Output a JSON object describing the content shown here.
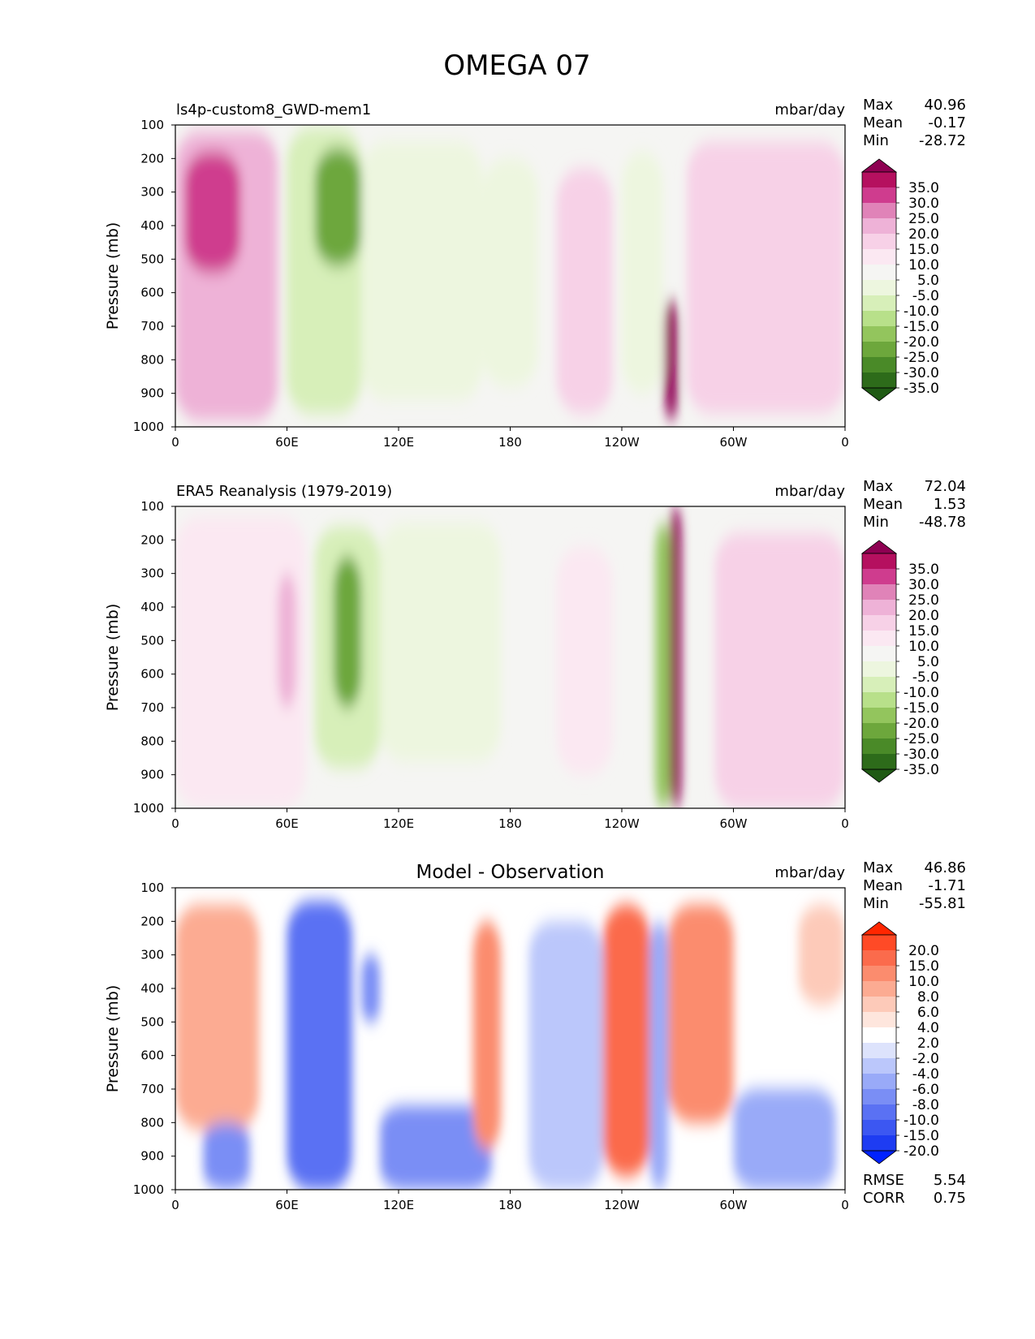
{
  "figure": {
    "title": "OMEGA 07"
  },
  "chart_data": [
    {
      "type": "heatmap",
      "title_left": "ls4p-custom8_GWD-mem1",
      "title_center": "",
      "units": "mbar/day",
      "ylabel": "Pressure (mb)",
      "yticks": [
        "100",
        "200",
        "300",
        "400",
        "500",
        "600",
        "700",
        "800",
        "900",
        "1000"
      ],
      "ylim": [
        1000,
        100
      ],
      "xticks": [
        "0",
        "60E",
        "120E",
        "180",
        "120W",
        "60W",
        "0"
      ],
      "xlim": [
        0,
        360
      ],
      "stats": [
        {
          "label": "Max",
          "value": "40.96"
        },
        {
          "label": "Mean",
          "value": "-0.17"
        },
        {
          "label": "Min",
          "value": "-28.72"
        }
      ],
      "colorbar": {
        "labels": [
          "35.0",
          "30.0",
          "25.0",
          "20.0",
          "15.0",
          "10.0",
          "5.0",
          "-5.0",
          "-10.0",
          "-15.0",
          "-20.0",
          "-25.0",
          "-30.0",
          "-35.0"
        ],
        "colors": [
          "#8e0152",
          "#b5105f",
          "#cf3c8e",
          "#e083b8",
          "#eeb2d7",
          "#f7d1e7",
          "#fbe8f2",
          "#f5f5f3",
          "#edf6df",
          "#d7efb9",
          "#b8e08a",
          "#93c55d",
          "#6da73c",
          "#4a8a28",
          "#2d6b1a",
          "#1f5a14"
        ]
      },
      "features": [
        {
          "lon_range": [
            0,
            55
          ],
          "p_range": [
            120,
            980
          ],
          "value": 15
        },
        {
          "lon_range": [
            5,
            35
          ],
          "p_range": [
            180,
            540
          ],
          "value": 25
        },
        {
          "lon_range": [
            60,
            100
          ],
          "p_range": [
            110,
            960
          ],
          "value": -15
        },
        {
          "lon_range": [
            75,
            100
          ],
          "p_range": [
            170,
            520
          ],
          "value": -28
        },
        {
          "lon_range": [
            100,
            165
          ],
          "p_range": [
            150,
            920
          ],
          "value": -10
        },
        {
          "lon_range": [
            165,
            195
          ],
          "p_range": [
            200,
            880
          ],
          "value": -6
        },
        {
          "lon_range": [
            205,
            235
          ],
          "p_range": [
            230,
            960
          ],
          "value": 13
        },
        {
          "lon_range": [
            240,
            262
          ],
          "p_range": [
            180,
            900
          ],
          "value": -9
        },
        {
          "lon_range": [
            263,
            270
          ],
          "p_range": [
            620,
            980
          ],
          "value": 38
        },
        {
          "lon_range": [
            275,
            360
          ],
          "p_range": [
            150,
            960
          ],
          "value": 12
        }
      ]
    },
    {
      "type": "heatmap",
      "title_left": "ERA5 Reanalysis (1979-2019)",
      "title_center": "",
      "units": "mbar/day",
      "ylabel": "Pressure (mb)",
      "yticks": [
        "100",
        "200",
        "300",
        "400",
        "500",
        "600",
        "700",
        "800",
        "900",
        "1000"
      ],
      "ylim": [
        1000,
        100
      ],
      "xticks": [
        "0",
        "60E",
        "120E",
        "180",
        "120W",
        "60W",
        "0"
      ],
      "xlim": [
        0,
        360
      ],
      "stats": [
        {
          "label": "Max",
          "value": "72.04"
        },
        {
          "label": "Mean",
          "value": "1.53"
        },
        {
          "label": "Min",
          "value": "-48.78"
        }
      ],
      "colorbar": {
        "labels": [
          "35.0",
          "30.0",
          "25.0",
          "20.0",
          "15.0",
          "10.0",
          "5.0",
          "-5.0",
          "-10.0",
          "-15.0",
          "-20.0",
          "-25.0",
          "-30.0",
          "-35.0"
        ],
        "colors": [
          "#8e0152",
          "#b5105f",
          "#cf3c8e",
          "#e083b8",
          "#eeb2d7",
          "#f7d1e7",
          "#fbe8f2",
          "#f5f5f3",
          "#edf6df",
          "#d7efb9",
          "#b8e08a",
          "#93c55d",
          "#6da73c",
          "#4a8a28",
          "#2d6b1a",
          "#1f5a14"
        ]
      },
      "features": [
        {
          "lon_range": [
            0,
            70
          ],
          "p_range": [
            130,
            1000
          ],
          "value": 9
        },
        {
          "lon_range": [
            55,
            65
          ],
          "p_range": [
            300,
            700
          ],
          "value": 18
        },
        {
          "lon_range": [
            75,
            110
          ],
          "p_range": [
            160,
            880
          ],
          "value": -15
        },
        {
          "lon_range": [
            85,
            100
          ],
          "p_range": [
            250,
            700
          ],
          "value": -28
        },
        {
          "lon_range": [
            110,
            175
          ],
          "p_range": [
            150,
            860
          ],
          "value": -10
        },
        {
          "lon_range": [
            205,
            235
          ],
          "p_range": [
            220,
            900
          ],
          "value": 8
        },
        {
          "lon_range": [
            258,
            266
          ],
          "p_range": [
            150,
            1000
          ],
          "value": -25
        },
        {
          "lon_range": [
            266,
            272
          ],
          "p_range": [
            100,
            1000
          ],
          "value": 45
        },
        {
          "lon_range": [
            290,
            360
          ],
          "p_range": [
            180,
            1000
          ],
          "value": 12
        }
      ]
    },
    {
      "type": "heatmap",
      "title_left": "",
      "title_center": "Model - Observation",
      "units": "mbar/day",
      "ylabel": "Pressure (mb)",
      "yticks": [
        "100",
        "200",
        "300",
        "400",
        "500",
        "600",
        "700",
        "800",
        "900",
        "1000"
      ],
      "ylim": [
        1000,
        100
      ],
      "xticks": [
        "0",
        "60E",
        "120E",
        "180",
        "120W",
        "60W",
        "0"
      ],
      "xlim": [
        0,
        360
      ],
      "stats": [
        {
          "label": "Max",
          "value": "46.86"
        },
        {
          "label": "Mean",
          "value": "-1.71"
        },
        {
          "label": "Min",
          "value": "-55.81"
        }
      ],
      "extra_stats": [
        {
          "label": "RMSE",
          "value": "5.54"
        },
        {
          "label": "CORR",
          "value": "0.75"
        }
      ],
      "colorbar": {
        "labels": [
          "20.0",
          "15.0",
          "10.0",
          "8.0",
          "6.0",
          "4.0",
          "2.0",
          "-2.0",
          "-4.0",
          "-6.0",
          "-8.0",
          "-10.0",
          "-15.0",
          "-20.0"
        ],
        "colors": [
          "#ff2600",
          "#ff4a26",
          "#fb6b4c",
          "#fb8c6e",
          "#fcab92",
          "#fdcab9",
          "#fee6dd",
          "#ffffff",
          "#dde3fc",
          "#bbc7fb",
          "#99aaf8",
          "#7a8ef5",
          "#5a71f3",
          "#3c57f2",
          "#1e3cf2",
          "#0022ff"
        ]
      },
      "features": [
        {
          "lon_range": [
            0,
            45
          ],
          "p_range": [
            150,
            820
          ],
          "value": 7
        },
        {
          "lon_range": [
            15,
            40
          ],
          "p_range": [
            800,
            1000
          ],
          "value": -9
        },
        {
          "lon_range": [
            60,
            95
          ],
          "p_range": [
            140,
            1000
          ],
          "value": -12
        },
        {
          "lon_range": [
            100,
            110
          ],
          "p_range": [
            300,
            500
          ],
          "value": -10
        },
        {
          "lon_range": [
            110,
            170
          ],
          "p_range": [
            750,
            1000
          ],
          "value": -10
        },
        {
          "lon_range": [
            160,
            175
          ],
          "p_range": [
            200,
            880
          ],
          "value": 8
        },
        {
          "lon_range": [
            190,
            230
          ],
          "p_range": [
            200,
            1000
          ],
          "value": -6
        },
        {
          "lon_range": [
            230,
            255
          ],
          "p_range": [
            150,
            960
          ],
          "value": 14
        },
        {
          "lon_range": [
            255,
            265
          ],
          "p_range": [
            200,
            1000
          ],
          "value": -8
        },
        {
          "lon_range": [
            265,
            300
          ],
          "p_range": [
            150,
            800
          ],
          "value": 9
        },
        {
          "lon_range": [
            300,
            355
          ],
          "p_range": [
            700,
            1000
          ],
          "value": -8
        },
        {
          "lon_range": [
            335,
            360
          ],
          "p_range": [
            150,
            450
          ],
          "value": 5
        }
      ]
    }
  ]
}
